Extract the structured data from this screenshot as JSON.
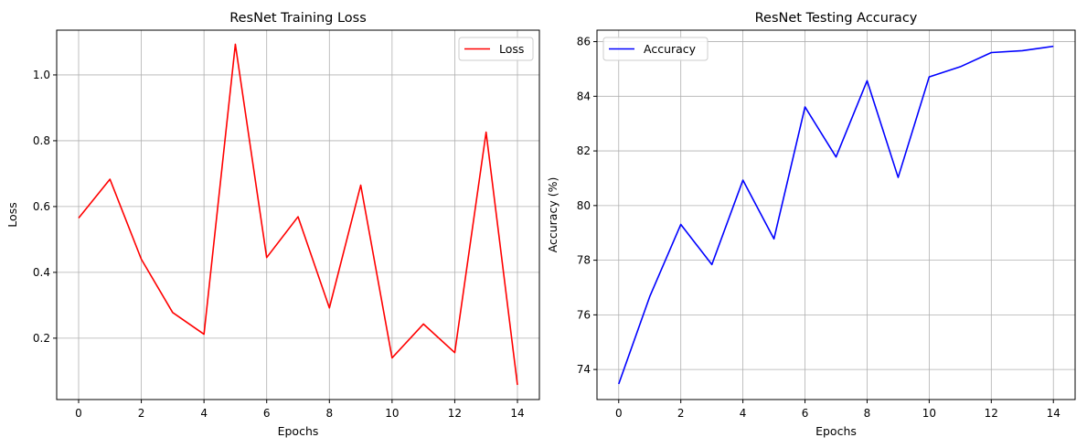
{
  "chart_data": [
    {
      "type": "line",
      "title": "ResNet Training Loss",
      "xlabel": "Epochs",
      "ylabel": "Loss",
      "xlim": [
        -0.7,
        14.7
      ],
      "ylim": [
        0.0135,
        1.136
      ],
      "xticks": [
        0,
        2,
        4,
        6,
        8,
        10,
        12,
        14
      ],
      "yticks": [
        0.2,
        0.4,
        0.6,
        0.8,
        1.0
      ],
      "ytick_decimals": 1,
      "grid": true,
      "legend_position": "top-right",
      "color": "#ff0000",
      "series": [
        {
          "name": "Loss",
          "color": "#ff0000",
          "x": [
            0,
            1,
            2,
            3,
            4,
            5,
            6,
            7,
            8,
            9,
            10,
            11,
            12,
            13,
            14
          ],
          "values": [
            0.565,
            0.683,
            0.44,
            0.278,
            0.212,
            1.093,
            0.445,
            0.569,
            0.292,
            0.665,
            0.14,
            0.243,
            0.156,
            0.826,
            0.058
          ]
        }
      ]
    },
    {
      "type": "line",
      "title": "ResNet Testing Accuracy",
      "xlabel": "Epochs",
      "ylabel": "Accuracy (%)",
      "xlim": [
        -0.7,
        14.7
      ],
      "ylim": [
        72.9,
        86.42
      ],
      "xticks": [
        0,
        2,
        4,
        6,
        8,
        10,
        12,
        14
      ],
      "yticks": [
        74,
        76,
        78,
        80,
        82,
        84,
        86
      ],
      "ytick_decimals": 0,
      "grid": true,
      "legend_position": "top-left",
      "color": "#0000ff",
      "series": [
        {
          "name": "Accuracy",
          "color": "#0000ff",
          "x": [
            0,
            1,
            2,
            3,
            4,
            5,
            6,
            7,
            8,
            9,
            10,
            11,
            12,
            13,
            14
          ],
          "values": [
            73.47,
            76.67,
            79.31,
            77.84,
            80.93,
            78.78,
            83.61,
            81.78,
            84.57,
            81.03,
            84.71,
            85.08,
            85.6,
            85.67,
            85.83
          ]
        }
      ]
    }
  ]
}
